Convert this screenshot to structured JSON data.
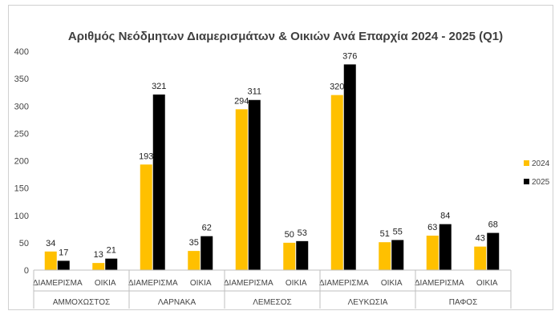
{
  "chart_data": {
    "type": "bar",
    "title": "Αριθμός Νεόδμητων Διαμερισμάτων & Οικιών Ανά Επαρχία 2024 - 2025 (Q1)",
    "ylim": [
      0,
      400
    ],
    "yticks": [
      0,
      50,
      100,
      150,
      200,
      250,
      300,
      350,
      400
    ],
    "groups": [
      {
        "name": "ΑΜΜΟΧΩΣΤΟΣ",
        "categories": [
          "ΔΙΑΜΕΡΙΣΜΑ",
          "ΟΙΚΙΑ"
        ]
      },
      {
        "name": "ΛΑΡΝΑΚΑ",
        "categories": [
          "ΔΙΑΜΕΡΙΣΜΑ",
          "ΟΙΚΙΑ"
        ]
      },
      {
        "name": "ΛΕΜΕΣΟΣ",
        "categories": [
          "ΔΙΑΜΕΡΙΣΜΑ",
          "ΟΙΚΙΑ"
        ]
      },
      {
        "name": "ΛΕΥΚΩΣΙΑ",
        "categories": [
          "ΔΙΑΜΕΡΙΣΜΑ",
          "ΟΙΚΙΑ"
        ]
      },
      {
        "name": "ΠΑΦΟΣ",
        "categories": [
          "ΔΙΑΜΕΡΙΣΜΑ",
          "ΟΙΚΙΑ"
        ]
      }
    ],
    "series": [
      {
        "name": "2024",
        "color": "#FFC000",
        "values": [
          34,
          13,
          193,
          35,
          294,
          50,
          320,
          51,
          63,
          43
        ]
      },
      {
        "name": "2025",
        "color": "#000000",
        "values": [
          17,
          21,
          321,
          62,
          311,
          53,
          376,
          55,
          84,
          68
        ]
      }
    ],
    "grid": false,
    "legend_position": "right"
  }
}
